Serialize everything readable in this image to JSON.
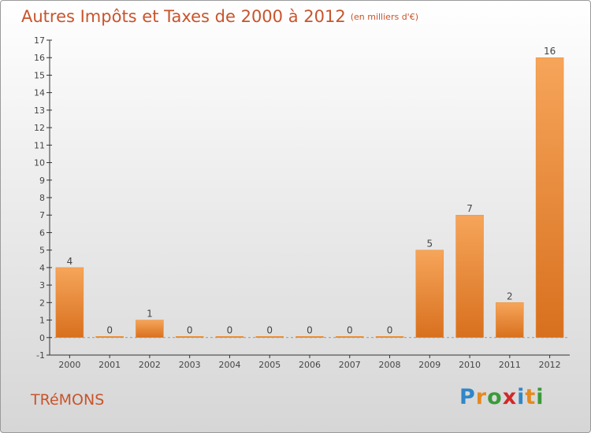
{
  "header": {
    "title": "Autres Impôts et Taxes de 2000 à 2012",
    "unit": "(en milliers d'€)"
  },
  "footer": {
    "commune": "TRéMONS",
    "logo_letters": [
      "P",
      "r",
      "o",
      "x",
      "i",
      "t",
      "i"
    ],
    "logo_colors": [
      "#2f87c8",
      "#e58a1f",
      "#3a9a3a",
      "#d02929",
      "#2f87c8",
      "#e58a1f",
      "#3a9a3a"
    ]
  },
  "colors": {
    "title": "#c8542c",
    "bar_light": "#f6a55a",
    "bar_dark": "#d8701e",
    "axis": "#333333",
    "grid": "#bbbbbb"
  },
  "chart_data": {
    "type": "bar",
    "title": "Autres Impôts et Taxes de 2000 à 2012",
    "subtitle": "(en milliers d'€)",
    "categories": [
      "2000",
      "2001",
      "2002",
      "2003",
      "2004",
      "2005",
      "2006",
      "2007",
      "2008",
      "2009",
      "2010",
      "2011",
      "2012"
    ],
    "values": [
      4,
      0,
      1,
      0,
      0,
      0,
      0,
      0,
      0,
      5,
      7,
      2,
      16
    ],
    "ylim": [
      -1,
      17
    ],
    "yticks": [
      -1,
      0,
      1,
      2,
      3,
      4,
      5,
      6,
      7,
      8,
      9,
      10,
      11,
      12,
      13,
      14,
      15,
      16,
      17
    ],
    "grid": false
  }
}
